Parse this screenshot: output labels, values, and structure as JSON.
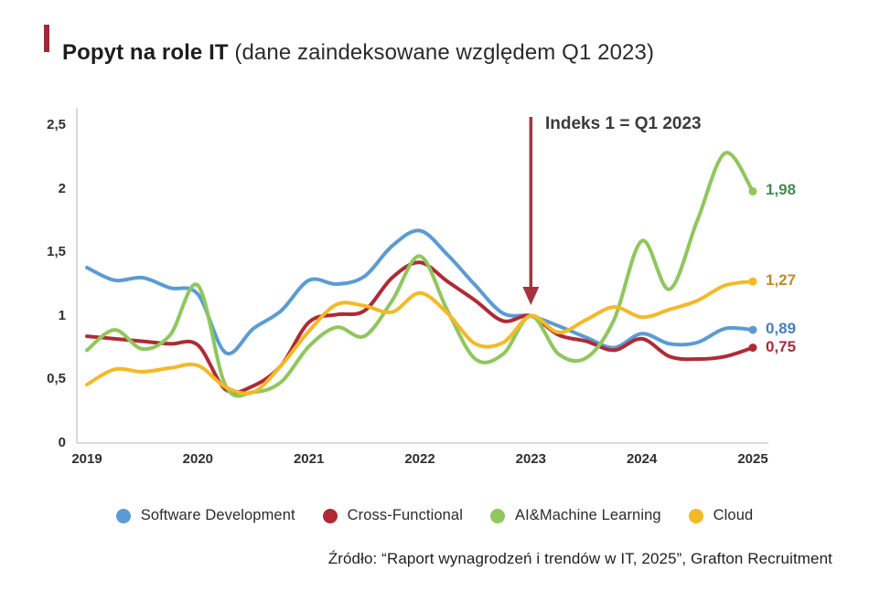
{
  "header": {
    "title_bold": "Popyt na role IT",
    "title_rest": " (dane zaindeksowane względem Q1 2023)",
    "accent_color": "#9E2B33"
  },
  "chart_data": {
    "type": "line",
    "title": "Popyt na role IT (dane zaindeksowane względem Q1 2023)",
    "x": [
      2019,
      2019.25,
      2019.5,
      2019.75,
      2020,
      2020.25,
      2020.5,
      2020.75,
      2021,
      2021.25,
      2021.5,
      2021.75,
      2022,
      2022.25,
      2022.5,
      2022.75,
      2023,
      2023.25,
      2023.5,
      2023.75,
      2024,
      2024.25,
      2024.5,
      2024.75,
      2025
    ],
    "x_tick_labels": [
      "2019",
      "2020",
      "2021",
      "2022",
      "2023",
      "2024",
      "2025"
    ],
    "y_tick_labels": [
      "0",
      "0,5",
      "1",
      "1,5",
      "2",
      "2,5"
    ],
    "ylim": [
      0,
      2.5
    ],
    "grid": false,
    "legend_position": "bottom",
    "axis_color": "#d9d9d9",
    "annotation": {
      "text": "Indeks 1 = Q1 2023",
      "x_year": 2023,
      "color": "#A5333F"
    },
    "series": [
      {
        "name": "Software Development",
        "color": "#5B9BD5",
        "end_label": "0,89",
        "end_label_color": "#4A7EBB",
        "values": [
          1.38,
          1.28,
          1.3,
          1.22,
          1.17,
          0.71,
          0.9,
          1.04,
          1.28,
          1.25,
          1.31,
          1.55,
          1.67,
          1.48,
          1.24,
          1.02,
          1.0,
          0.92,
          0.83,
          0.75,
          0.86,
          0.78,
          0.79,
          0.9,
          0.89
        ]
      },
      {
        "name": "Cross-Functional",
        "color": "#B02A35",
        "end_label": "0,75",
        "end_label_color": "#B02A38",
        "values": [
          0.84,
          0.82,
          0.8,
          0.78,
          0.77,
          0.42,
          0.45,
          0.61,
          0.95,
          1.01,
          1.04,
          1.3,
          1.42,
          1.27,
          1.12,
          0.96,
          1.0,
          0.85,
          0.8,
          0.73,
          0.82,
          0.68,
          0.66,
          0.68,
          0.75
        ]
      },
      {
        "name": "AI&Machine Learning",
        "color": "#8EC75B",
        "end_label": "1,98",
        "end_label_color": "#3E8E4E",
        "values": [
          0.73,
          0.89,
          0.74,
          0.85,
          1.24,
          0.45,
          0.4,
          0.48,
          0.76,
          0.91,
          0.84,
          1.12,
          1.47,
          1.04,
          0.66,
          0.7,
          1.0,
          0.7,
          0.67,
          0.97,
          1.59,
          1.21,
          1.75,
          2.28,
          1.98
        ]
      },
      {
        "name": "Cloud",
        "color": "#F5B826",
        "end_label": "1,27",
        "end_label_color": "#C18A2B",
        "values": [
          0.46,
          0.58,
          0.56,
          0.59,
          0.61,
          0.44,
          0.4,
          0.61,
          0.88,
          1.09,
          1.08,
          1.03,
          1.18,
          1.02,
          0.78,
          0.79,
          1.0,
          0.87,
          0.97,
          1.07,
          0.99,
          1.05,
          1.12,
          1.24,
          1.27
        ]
      }
    ]
  },
  "footer": {
    "source": "Źródło: “Raport wynagrodzeń i trendów w IT, 2025”, Grafton Recruitment"
  }
}
